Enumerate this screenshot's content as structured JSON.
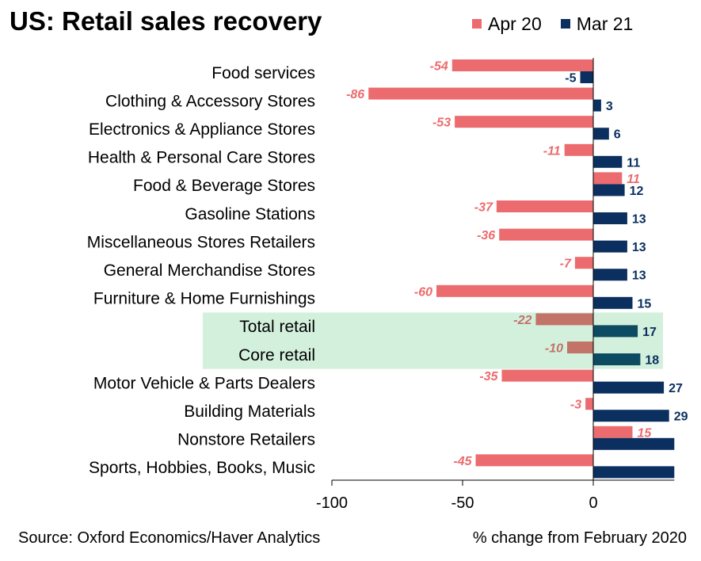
{
  "header": {
    "title": "US: Retail sales recovery",
    "legend": [
      {
        "label": "Apr 20",
        "color": "#ec6b6e"
      },
      {
        "label": "Mar 21",
        "color": "#0b2f5e"
      }
    ]
  },
  "footer": {
    "source": "Source: Oxford Economics/Haver Analytics",
    "unit_note": "% change from February 2020"
  },
  "colors": {
    "apr20": "#ec6b6e",
    "mar21": "#0b2f5e",
    "apr20_highlight": "#c27468",
    "mar21_highlight": "#0d4b62",
    "highlight_band": "#d3f0dd"
  },
  "chart_data": {
    "type": "bar",
    "orientation": "horizontal",
    "categories": [
      "Food services",
      "Clothing & Accessory Stores",
      "Electronics & Appliance Stores",
      "Health & Personal Care Stores",
      "Food & Beverage Stores",
      "Gasoline Stations",
      "Miscellaneous Stores Retailers",
      "General Merchandise Stores",
      "Furniture & Home Furnishings",
      "Total retail",
      "Core retail",
      "Motor Vehicle & Parts Dealers",
      "Building Materials",
      "Nonstore Retailers",
      "Sports, Hobbies, Books, Music"
    ],
    "highlighted_categories": [
      "Total retail",
      "Core retail"
    ],
    "series": [
      {
        "name": "Apr 20",
        "values": [
          -54,
          -86,
          -53,
          -11,
          11,
          -37,
          -36,
          -7,
          -60,
          -22,
          -10,
          -35,
          -3,
          15,
          -45
        ],
        "labels": [
          "-54",
          "-86",
          "-53",
          "-11",
          "11",
          "-37",
          "-36",
          "-7",
          "-60",
          "-22",
          "-10",
          "-35",
          "-3",
          "15",
          "-45"
        ]
      },
      {
        "name": "Mar 21",
        "values": [
          -5,
          3,
          6,
          11,
          12,
          13,
          13,
          13,
          15,
          17,
          18,
          27,
          29,
          31,
          31
        ],
        "labels": [
          "-5",
          "3",
          "6",
          "11",
          "12",
          "13",
          "13",
          "13",
          "15",
          "17",
          "18",
          "27",
          "29",
          "",
          ""
        ]
      }
    ],
    "xlim": [
      -100,
      31
    ],
    "xticks": [
      -100,
      -50,
      0
    ],
    "xtick_labels": [
      "-100",
      "-50",
      "0"
    ],
    "grid": false
  }
}
